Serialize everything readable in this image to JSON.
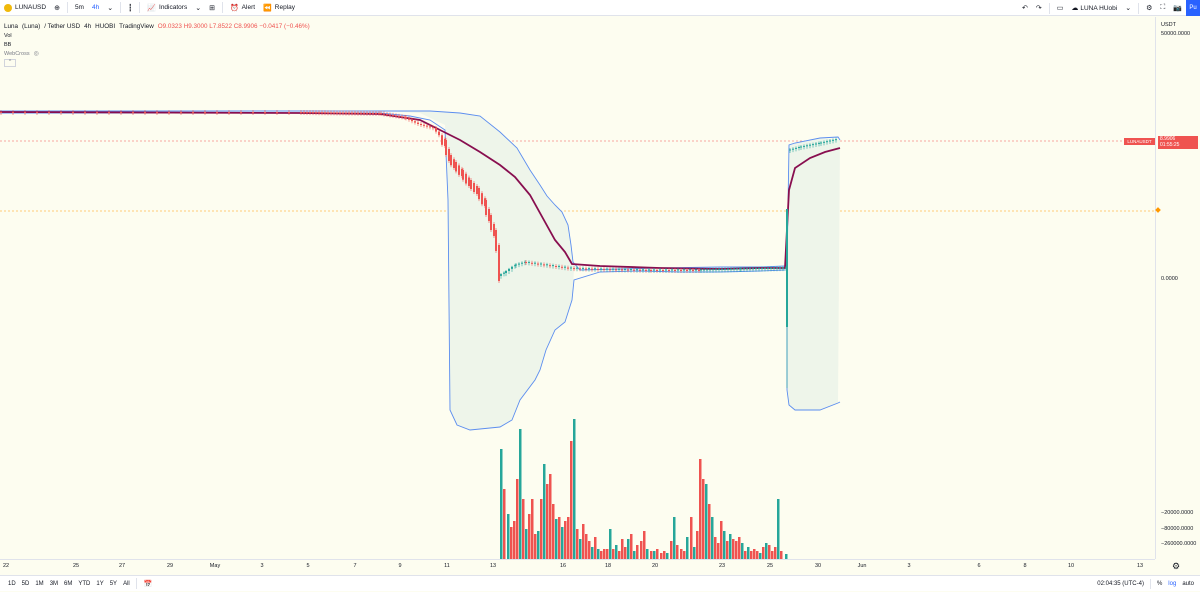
{
  "toolbar": {
    "symbol": "LUNAUSD",
    "interval_5m": "5m",
    "interval_4h": "4h",
    "indicators": "Indicators",
    "alert": "Alert",
    "replay": "Replay",
    "layout_name": "LUNA HUobi",
    "publish": "Pu"
  },
  "legend": {
    "name": "Luna",
    "paren": "(Luna)",
    "pair": "/ Tether USD",
    "interval": "4h",
    "exchange": "HUOBI",
    "source": "TradingView",
    "ohlc": "O9.0323 H9.3000 L7.8522 C8.9906 −0.0417 (−0.46%)",
    "vol": "Vol",
    "bb": "BB",
    "script": "WebCross",
    "collapse": "^"
  },
  "price_axis": {
    "currency": "USDT",
    "labels": [
      {
        "text": "50000.0000"
      },
      {
        "text": "0.0000"
      },
      {
        "text": "−20000.0000"
      },
      {
        "text": "−80000.0000"
      },
      {
        "text": "−260000.0000"
      }
    ],
    "last_price": "8.9906",
    "countdown": "01:55:25",
    "symbol_tag": "LUNAUSDT"
  },
  "time_axis": {
    "labels": [
      "22",
      "25",
      "27",
      "29",
      "May",
      "3",
      "5",
      "7",
      "9",
      "11",
      "13",
      "16",
      "18",
      "20",
      "23",
      "25",
      "30",
      "Jun",
      "3",
      "6",
      "8",
      "10",
      "13"
    ]
  },
  "bottom": {
    "ranges": [
      "1D",
      "5D",
      "1M",
      "3M",
      "6M",
      "YTD",
      "1Y",
      "5Y",
      "All"
    ],
    "clock": "02:04:35 (UTC-4)",
    "pct": "%",
    "log": "log",
    "auto": "auto"
  },
  "colors": {
    "up": "#26a69a",
    "down": "#ef5350",
    "bb_band": "#5b8def",
    "bb_basis": "#880e4f",
    "background": "#fdfdf0"
  }
}
